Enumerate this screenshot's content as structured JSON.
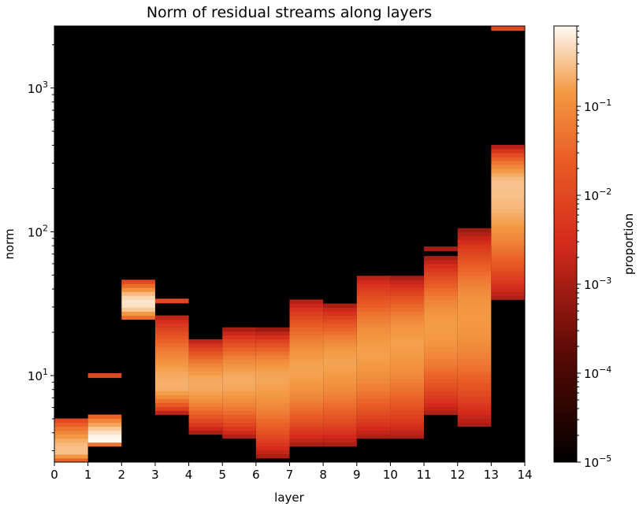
{
  "chart_data": {
    "type": "heatmap",
    "title": "Norm of residual streams along layers",
    "xlabel": "layer",
    "ylabel": "norm",
    "x_ticks": [
      0,
      1,
      2,
      3,
      4,
      5,
      6,
      7,
      8,
      9,
      10,
      11,
      12,
      13,
      14
    ],
    "xlim": [
      0,
      14
    ],
    "y_scale": "log",
    "ylim": [
      2.5,
      2700
    ],
    "y_ticks": [
      {
        "value": 10,
        "base": "10",
        "exp": "1"
      },
      {
        "value": 100,
        "base": "10",
        "exp": "2"
      },
      {
        "value": 1000,
        "base": "10",
        "exp": "3"
      }
    ],
    "background": "#000000",
    "colorbar": {
      "label": "proportion",
      "scale": "log",
      "range": [
        1e-05,
        0.8
      ],
      "ticks": [
        {
          "value": 0.1,
          "base": "10",
          "exp": "−1"
        },
        {
          "value": 0.01,
          "base": "10",
          "exp": "−2"
        },
        {
          "value": 0.001,
          "base": "10",
          "exp": "−3"
        },
        {
          "value": 0.0001,
          "base": "10",
          "exp": "−4"
        },
        {
          "value": 1e-05,
          "base": "10",
          "exp": "−5"
        }
      ],
      "colormap_stops": [
        {
          "t": 0.0,
          "color": "#000000"
        },
        {
          "t": 0.25,
          "color": "#5a0a05"
        },
        {
          "t": 0.5,
          "color": "#d42a1c"
        },
        {
          "t": 0.7,
          "color": "#ea5f26"
        },
        {
          "t": 0.85,
          "color": "#f39a44"
        },
        {
          "t": 1.0,
          "color": "#fffaf4"
        }
      ]
    },
    "columns": [
      {
        "x": [
          0,
          1
        ],
        "lo": 2.5,
        "hi": 4.9,
        "peak": 3.0,
        "peak_prop": 0.3,
        "base_prop": 0.01
      },
      {
        "x": [
          1,
          2
        ],
        "lo": 3.3,
        "hi": 5.3,
        "peak": 3.5,
        "peak_prop": 0.8,
        "base_prop": 0.02,
        "outliers": [
          [
            10.0,
            0.01
          ]
        ]
      },
      {
        "x": [
          2,
          3
        ],
        "lo": 24,
        "hi": 45,
        "peak": 32,
        "peak_prop": 0.55,
        "base_prop": 0.01
      },
      {
        "x": [
          3,
          4
        ],
        "lo": 5.4,
        "hi": 27,
        "peak": 8.5,
        "peak_prop": 0.22,
        "base_prop": 0.001,
        "outliers": [
          [
            33,
            0.01
          ]
        ]
      },
      {
        "x": [
          4,
          5
        ],
        "lo": 4.0,
        "hi": 18,
        "peak": 8.8,
        "peak_prop": 0.2,
        "base_prop": 0.001
      },
      {
        "x": [
          5,
          6
        ],
        "lo": 3.7,
        "hi": 21,
        "peak": 9.2,
        "peak_prop": 0.2,
        "base_prop": 0.001
      },
      {
        "x": [
          6,
          7
        ],
        "lo": 2.6,
        "hi": 21,
        "peak": 9.8,
        "peak_prop": 0.18,
        "base_prop": 0.0007
      },
      {
        "x": [
          7,
          8
        ],
        "lo": 3.3,
        "hi": 34,
        "peak": 11,
        "peak_prop": 0.17,
        "base_prop": 0.001
      },
      {
        "x": [
          8,
          9
        ],
        "lo": 3.3,
        "hi": 31,
        "peak": 12.5,
        "peak_prop": 0.17,
        "base_prop": 0.001
      },
      {
        "x": [
          9,
          10
        ],
        "lo": 3.7,
        "hi": 51,
        "peak": 14.5,
        "peak_prop": 0.16,
        "base_prop": 0.001
      },
      {
        "x": [
          10,
          11
        ],
        "lo": 3.7,
        "hi": 48,
        "peak": 17,
        "peak_prop": 0.16,
        "base_prop": 0.001
      },
      {
        "x": [
          11,
          12
        ],
        "lo": 5.4,
        "hi": 66,
        "peak": 22,
        "peak_prop": 0.15,
        "base_prop": 0.001,
        "outliers": [
          [
            76,
            0.001
          ]
        ]
      },
      {
        "x": [
          12,
          13
        ],
        "lo": 4.3,
        "hi": 105,
        "peak": 26,
        "peak_prop": 0.14,
        "base_prop": 0.0007
      },
      {
        "x": [
          13,
          14
        ],
        "lo": 34,
        "hi": 400,
        "peak": 210,
        "peak_prop": 0.3,
        "base_prop": 0.001,
        "outliers": [
          [
            2600,
            0.01
          ]
        ]
      }
    ]
  }
}
